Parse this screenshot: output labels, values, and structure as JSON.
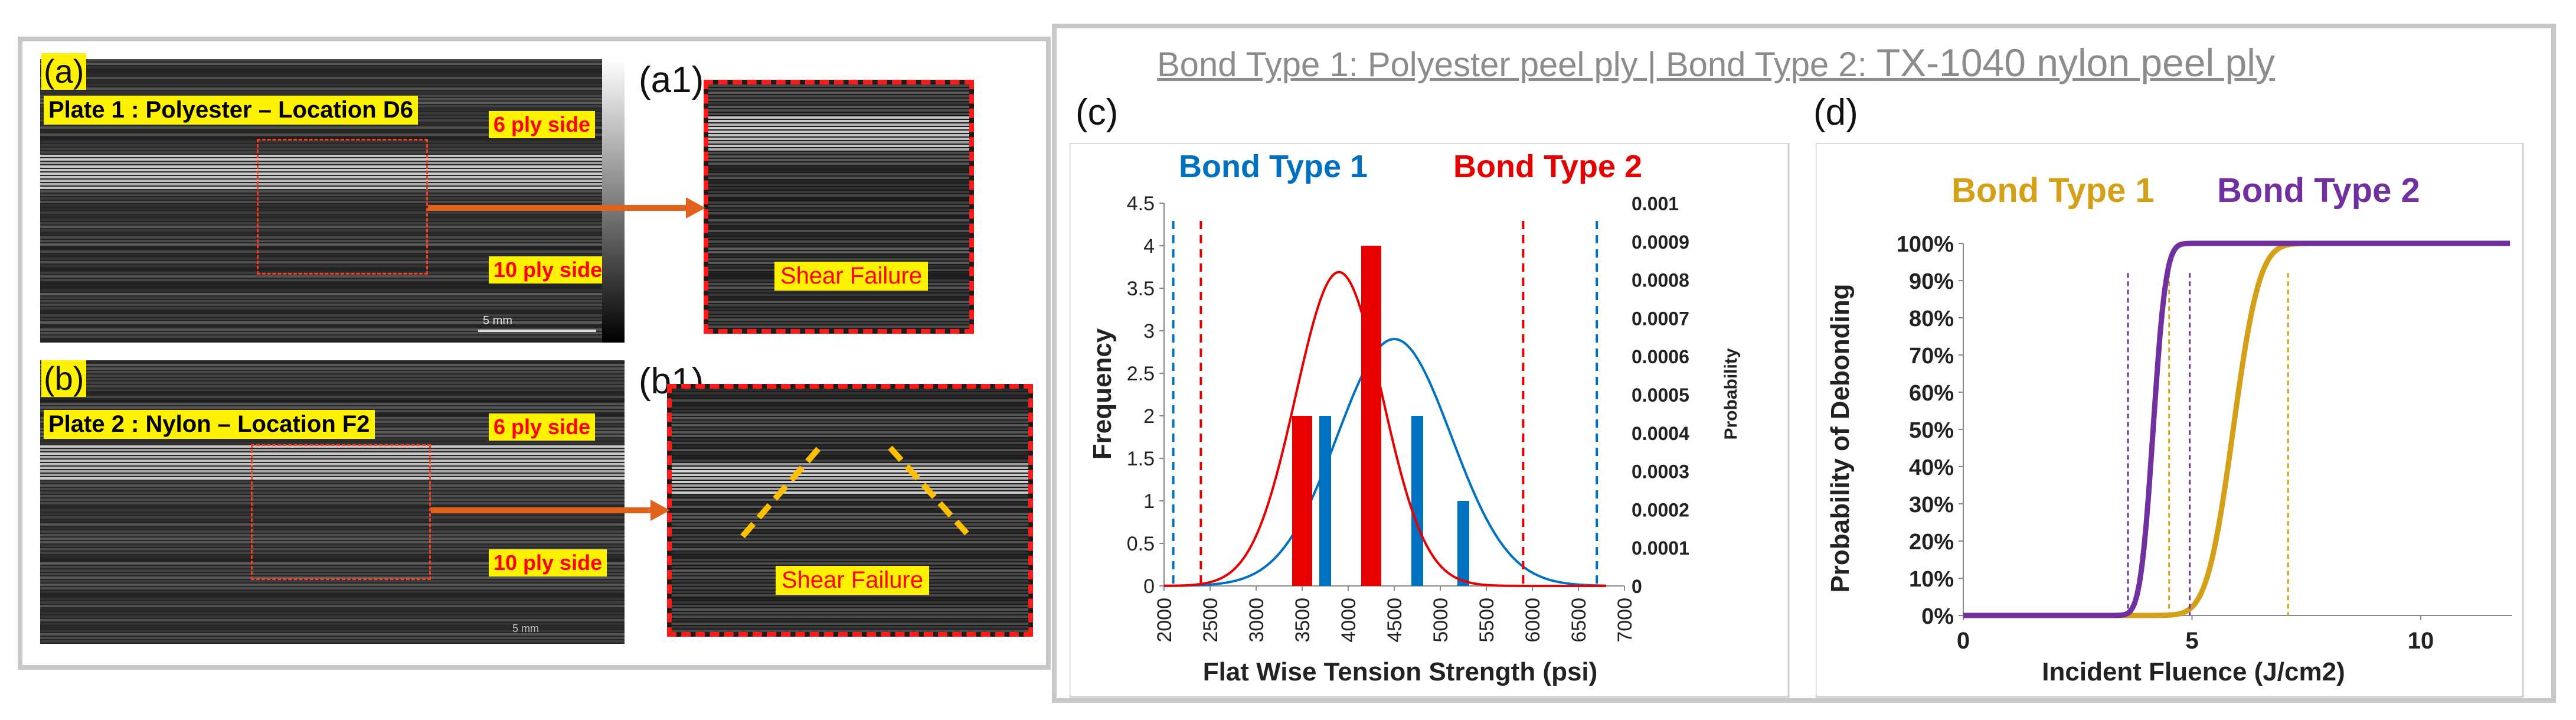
{
  "title": {
    "part1": "Bond Type 1: Polyester peel ply  |  Bond Type 2: ",
    "part2": "TX-1040 nylon peel ply"
  },
  "panels": {
    "a": {
      "letter": "(a)",
      "plate_label": "Plate 1 : Polyester – Location D6",
      "top_side": "6 ply side",
      "bottom_side": "10 ply side",
      "scale": "5 mm"
    },
    "a1": {
      "letter": "(a1)",
      "failure": "Shear Failure"
    },
    "b": {
      "letter": "(b)",
      "plate_label": "Plate 2 : Nylon – Location F2",
      "top_side": "6 ply side",
      "bottom_side": "10 ply side",
      "scale": "5 mm"
    },
    "b1": {
      "letter": "(b1)",
      "failure": "Shear Failure"
    },
    "c": {
      "letter": "(c)"
    },
    "d": {
      "letter": "(d)"
    }
  },
  "colors": {
    "bond1_blue": "#0070c0",
    "bond2_red": "#e60000",
    "bond1_gold": "#d4a017",
    "bond2_purple": "#7030a0",
    "arrow": "#e2611c"
  },
  "chart_data": [
    {
      "id": "c",
      "type": "bar",
      "title": "",
      "legend": [
        "Bond Type 1",
        "Bond Type 2"
      ],
      "xlabel": "Flat Wise Tension Strength (psi)",
      "ylabel": "Frequency",
      "y2label": "Probability",
      "xlim": [
        2000,
        7000
      ],
      "ylim": [
        0,
        4.5
      ],
      "y2lim": [
        0,
        0.001
      ],
      "xticks": [
        2000,
        2500,
        3000,
        3500,
        4000,
        4500,
        5000,
        5500,
        6000,
        6500,
        7000
      ],
      "yticks": [
        0,
        0.5,
        1,
        1.5,
        2,
        2.5,
        3,
        3.5,
        4,
        4.5
      ],
      "y2ticks": [
        "0",
        "0.0001",
        "0.0002",
        "0.0003",
        "0.0004",
        "0.0005",
        "0.0006",
        "0.0007",
        "0.0008",
        "0.0009",
        "0.001"
      ],
      "series": [
        {
          "name": "Bond Type 1",
          "bars": [
            {
              "x": 3750,
              "value": 2
            },
            {
              "x": 4750,
              "value": 2
            },
            {
              "x": 5250,
              "value": 1
            }
          ],
          "pdf": {
            "mean": 4500,
            "sd": 620,
            "peak": 0.000645
          },
          "limits": [
            2100,
            6700
          ]
        },
        {
          "name": "Bond Type 2",
          "bars": [
            {
              "x": 3500,
              "value": 2
            },
            {
              "x": 4250,
              "value": 4
            }
          ],
          "pdf": {
            "mean": 3900,
            "sd": 470,
            "peak": 0.00082
          },
          "limits": [
            2400,
            5900
          ]
        }
      ]
    },
    {
      "id": "d",
      "type": "line",
      "title": "",
      "legend": [
        "Bond Type 1",
        "Bond Type 2"
      ],
      "xlabel": "Incident Fluence (J/cm2)",
      "ylabel": "Probability of Debonding",
      "xlim": [
        0,
        12
      ],
      "ylim": [
        0,
        100
      ],
      "xticks": [
        0,
        5,
        10
      ],
      "yticks": [
        "0%",
        "10%",
        "20%",
        "30%",
        "40%",
        "50%",
        "60%",
        "70%",
        "80%",
        "90%",
        "100%"
      ],
      "series": [
        {
          "name": "Bond Type 1",
          "cdf": {
            "mean": 5.9,
            "sd": 0.45
          },
          "limits": [
            4.5,
            7.1
          ]
        },
        {
          "name": "Bond Type 2",
          "cdf": {
            "mean": 4.15,
            "sd": 0.22
          },
          "limits": [
            3.6,
            4.95
          ]
        }
      ]
    }
  ]
}
